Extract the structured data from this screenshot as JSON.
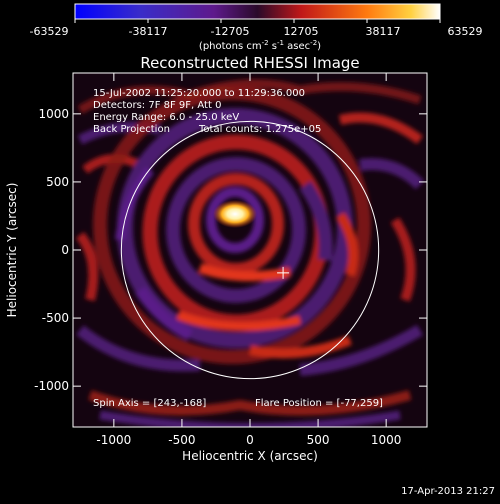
{
  "colorbar": {
    "ticks": [
      "-63529",
      "-38117",
      "-12705",
      "12705",
      "38117",
      "63529"
    ],
    "unit_text": "(photons cm",
    "unit_exp1": "-2",
    "unit_mid": " s",
    "unit_exp2": "-1",
    "unit_tail": " asec",
    "unit_exp3": "-2",
    "unit_close": ")"
  },
  "header": {
    "title": "Reconstructed RHESSI Image"
  },
  "annotations": {
    "line1": "15-Jul-2002 11:25:20.000 to 11:29:36.000",
    "line2": "Detectors: 7F 8F 9F, Att 0",
    "line3": "Energy Range: 6.0 - 25.0 keV",
    "line4a": "Back Projection",
    "line4b": "Total counts: 1.275e+05",
    "spin_axis": "Spin Axis = [243,-168]",
    "flare_position": "Flare Position = [-77,259]"
  },
  "footer": {
    "timestamp": "17-Apr-2013 21:27"
  },
  "chart_data": {
    "type": "heatmap",
    "title": "Reconstructed RHESSI Image",
    "xlabel": "Heliocentric X (arcsec)",
    "ylabel": "Heliocentric Y (arcsec)",
    "xlim": [
      -1300,
      1300
    ],
    "ylim": [
      -1300,
      1300
    ],
    "x_ticks": [
      "-1000",
      "-500",
      "0",
      "500",
      "1000"
    ],
    "x_tick_values": [
      -1000,
      -500,
      0,
      500,
      1000
    ],
    "y_ticks": [
      "1000",
      "500",
      "0",
      "-500",
      "-1000"
    ],
    "y_tick_values": [
      1000,
      500,
      0,
      -500,
      -1000
    ],
    "colorscale_range": [
      -63529,
      63529
    ],
    "solar_limb_radius_arcsec": 945,
    "flare_center": [
      -77,
      259
    ],
    "spin_axis_marker": [
      243,
      -168
    ],
    "colors": {
      "background": "#000000",
      "limb": "#ffffff",
      "text": "#ffffff"
    }
  }
}
